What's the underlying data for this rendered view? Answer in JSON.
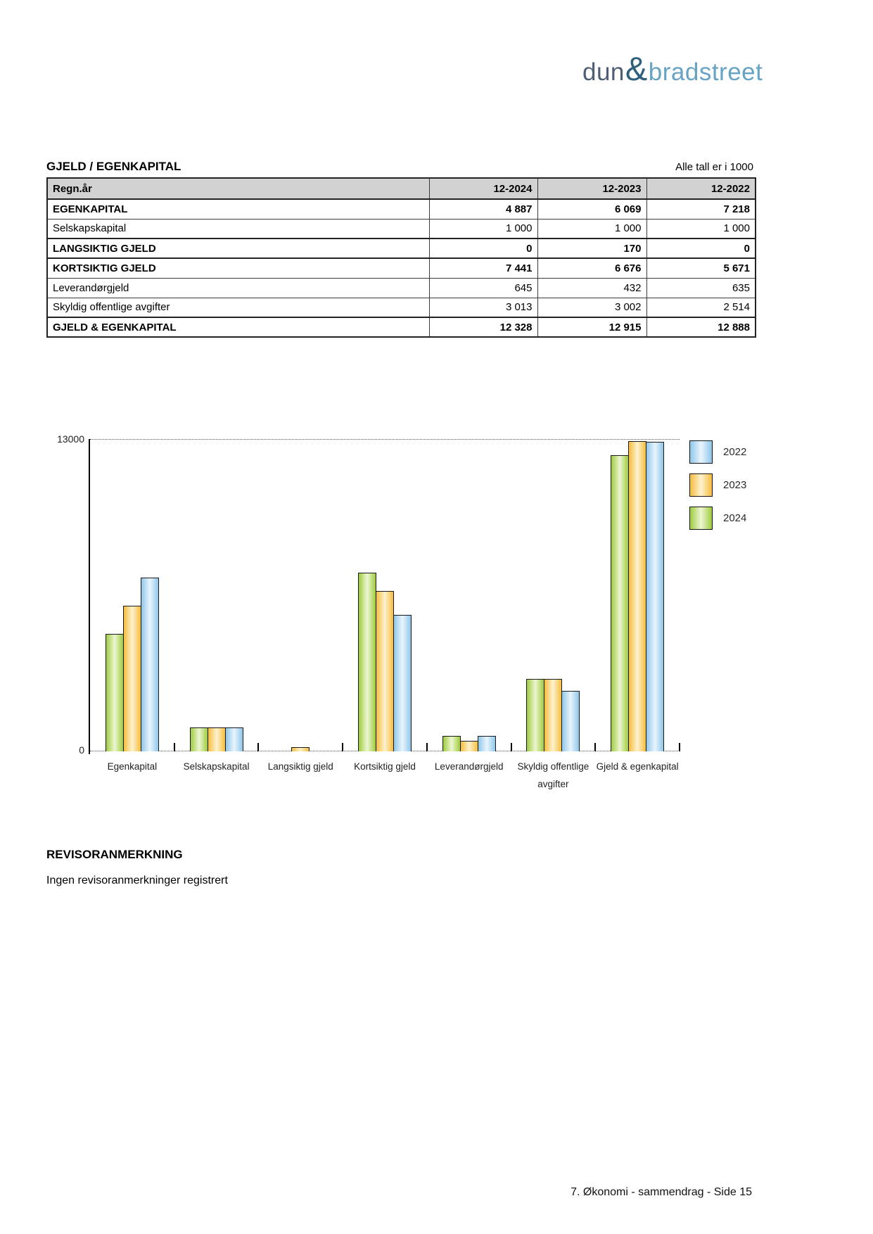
{
  "logo": {
    "part1": "dun",
    "amp": "&",
    "part2": "bradstreet",
    "color_dark": "#4d5e75",
    "color_amp": "#2e5f7c",
    "color_light": "#67a3c3"
  },
  "table": {
    "title": "GJELD / EGENKAPITAL",
    "note": "Alle tall er i 1000",
    "columns": [
      "Regn.år",
      "12-2024",
      "12-2023",
      "12-2022"
    ],
    "rows": [
      {
        "label": "EGENKAPITAL",
        "bold": true,
        "section": false,
        "values": [
          "4 887",
          "6 069",
          "7 218"
        ]
      },
      {
        "label": "Selskapskapital",
        "bold": false,
        "section": false,
        "values": [
          "1 000",
          "1 000",
          "1 000"
        ]
      },
      {
        "label": "LANGSIKTIG GJELD",
        "bold": true,
        "section": true,
        "values": [
          "0",
          "170",
          "0"
        ]
      },
      {
        "label": "KORTSIKTIG GJELD",
        "bold": true,
        "section": true,
        "values": [
          "7 441",
          "6 676",
          "5 671"
        ]
      },
      {
        "label": "Leverandørgjeld",
        "bold": false,
        "section": false,
        "values": [
          "645",
          "432",
          "635"
        ]
      },
      {
        "label": "Skyldig offentlige avgifter",
        "bold": false,
        "section": false,
        "values": [
          "3 013",
          "3 002",
          "2 514"
        ]
      },
      {
        "label": "GJELD & EGENKAPITAL",
        "bold": true,
        "section": true,
        "values": [
          "12 328",
          "12 915",
          "12 888"
        ]
      }
    ]
  },
  "chart_data": {
    "type": "bar",
    "title": "",
    "categories": [
      "Egenkapital",
      "Selskapskapital",
      "Langsiktig gjeld",
      "Kortsiktig gjeld",
      "Leverandørgjeld",
      "Skyldig offentlige avgifter",
      "Gjeld & egenkapital"
    ],
    "series": [
      {
        "name": "2024",
        "color_edge": "#9fcc3f",
        "color_center": "#edf6d2",
        "values": [
          4887,
          1000,
          0,
          7441,
          645,
          3013,
          12328
        ]
      },
      {
        "name": "2023",
        "color_edge": "#f6bd3d",
        "color_center": "#fdf2cf",
        "values": [
          6069,
          1000,
          170,
          6676,
          432,
          3002,
          12915
        ]
      },
      {
        "name": "2022",
        "color_edge": "#8fc6ea",
        "color_center": "#e9f5fd",
        "values": [
          7218,
          1000,
          0,
          5671,
          635,
          2514,
          12888
        ]
      }
    ],
    "legend": [
      "2022",
      "2023",
      "2024"
    ],
    "legend_position": "right-top",
    "ylim": [
      0,
      13000
    ],
    "yticks": [
      "13000",
      "0"
    ],
    "grid": "dotted-top-and-baseline",
    "xlabel": "",
    "ylabel": ""
  },
  "revisor": {
    "heading": "REVISORANMERKNING",
    "text": "Ingen revisoranmerkninger registrert"
  },
  "footer": {
    "text": "7. Økonomi - sammendrag - Side 15"
  }
}
